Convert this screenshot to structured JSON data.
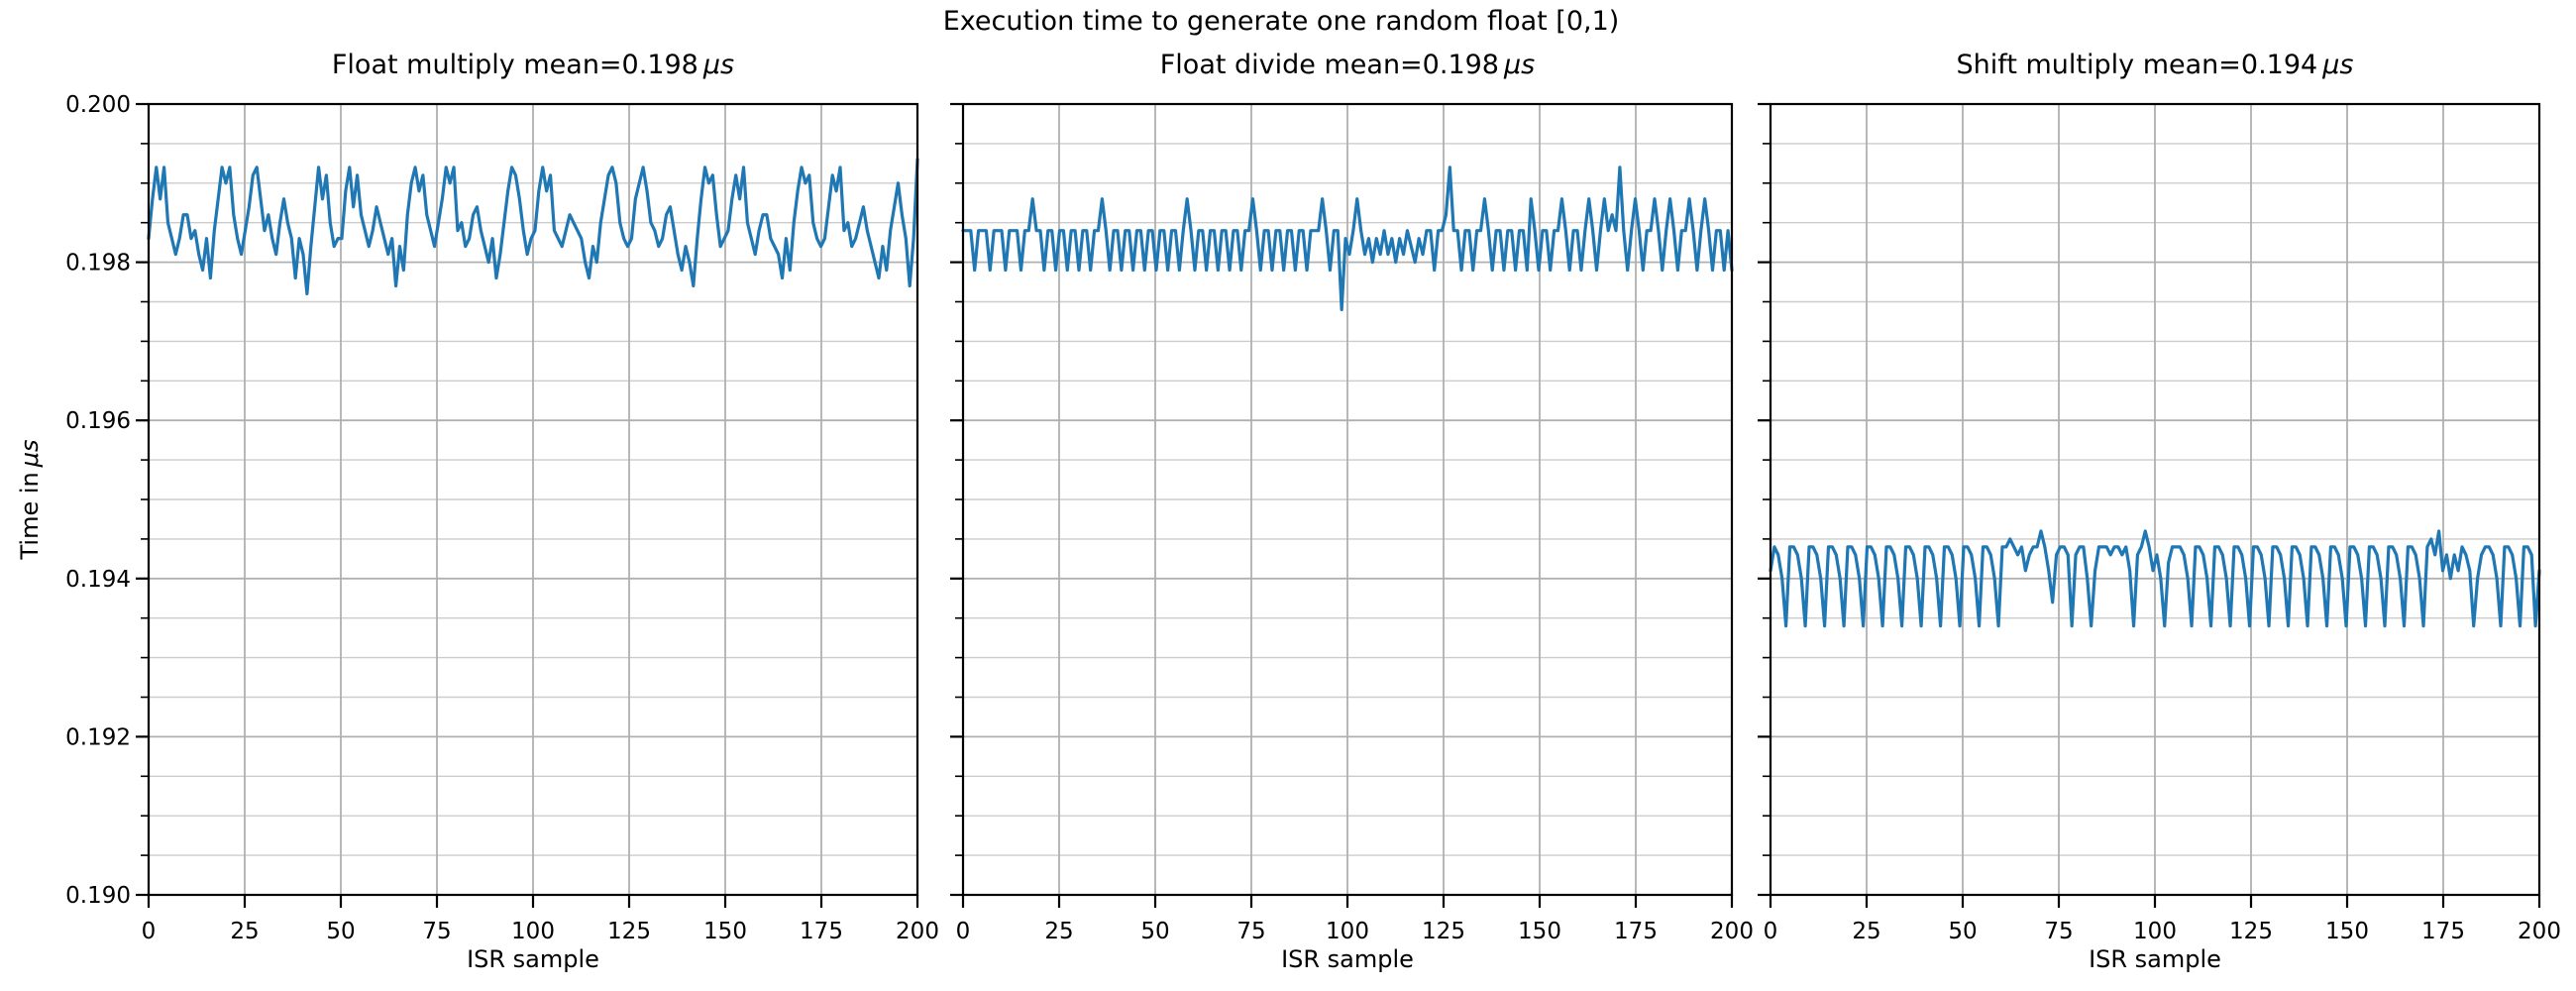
{
  "figure": {
    "suptitle": "Execution time to generate one random float [0,1)",
    "background": "#ffffff"
  },
  "shared": {
    "xlabel": "ISR sample",
    "ylabel_text": "Time in",
    "ylabel_unit": "μs",
    "line_color": "#1f77b4",
    "grid_major_color": "#b0b0b0",
    "grid_minor_color": "#cccccc",
    "axis_color": "#000000",
    "text_color": "#000000"
  },
  "chart_data": [
    {
      "type": "line",
      "title_text": "Float multiply mean=0.198",
      "title_unit": "μs",
      "mean_us": 0.198,
      "xlabel": "ISR sample",
      "ylabel": "Time in μs",
      "xlim": [
        0,
        200
      ],
      "ylim": [
        0.19,
        0.2
      ],
      "x_ticks": [
        0,
        25,
        50,
        75,
        100,
        125,
        150,
        175,
        200
      ],
      "y_ticks": [
        0.19,
        0.192,
        0.194,
        0.196,
        0.198,
        0.2
      ],
      "y_tick_labels": [
        "0.190",
        "0.192",
        "0.194",
        "0.196",
        "0.198",
        "0.200"
      ],
      "y_minor_step": 0.0005,
      "grid": "both",
      "legend": "none",
      "values": [
        0.1983,
        0.1988,
        0.1992,
        0.1988,
        0.1992,
        0.1985,
        0.1983,
        0.1981,
        0.1983,
        0.1986,
        0.1986,
        0.1983,
        0.1984,
        0.1981,
        0.1979,
        0.1983,
        0.1978,
        0.1984,
        0.1988,
        0.1992,
        0.199,
        0.1992,
        0.1986,
        0.1983,
        0.1981,
        0.1984,
        0.1987,
        0.1991,
        0.1992,
        0.1988,
        0.1984,
        0.1986,
        0.1983,
        0.1981,
        0.1985,
        0.1988,
        0.1985,
        0.1983,
        0.1978,
        0.1983,
        0.1981,
        0.1976,
        0.1982,
        0.1987,
        0.1992,
        0.1988,
        0.1991,
        0.1985,
        0.1982,
        0.1983,
        0.1983,
        0.1989,
        0.1992,
        0.1987,
        0.1991,
        0.1986,
        0.1984,
        0.1982,
        0.1984,
        0.1987,
        0.1985,
        0.1983,
        0.1981,
        0.1983,
        0.1977,
        0.1982,
        0.1979,
        0.1986,
        0.199,
        0.1992,
        0.1989,
        0.1991,
        0.1986,
        0.1984,
        0.1982,
        0.1985,
        0.1988,
        0.1992,
        0.199,
        0.1992,
        0.1984,
        0.1985,
        0.1982,
        0.1983,
        0.1986,
        0.1987,
        0.1984,
        0.1982,
        0.198,
        0.1983,
        0.1978,
        0.1981,
        0.1985,
        0.1989,
        0.1992,
        0.1991,
        0.1988,
        0.1984,
        0.1981,
        0.1983,
        0.1984,
        0.1989,
        0.1992,
        0.1989,
        0.1991,
        0.1984,
        0.1983,
        0.1982,
        0.1984,
        0.1986,
        0.1985,
        0.1984,
        0.1983,
        0.198,
        0.1978,
        0.1982,
        0.198,
        0.1985,
        0.1988,
        0.1991,
        0.1992,
        0.199,
        0.1985,
        0.1983,
        0.1982,
        0.1983,
        0.1988,
        0.199,
        0.1992,
        0.1989,
        0.1985,
        0.1984,
        0.1982,
        0.1983,
        0.1986,
        0.1987,
        0.1984,
        0.1981,
        0.1979,
        0.1982,
        0.198,
        0.1977,
        0.1983,
        0.1988,
        0.1992,
        0.199,
        0.1991,
        0.1986,
        0.1982,
        0.1983,
        0.1984,
        0.1988,
        0.1991,
        0.1988,
        0.1992,
        0.1985,
        0.1983,
        0.1981,
        0.1984,
        0.1986,
        0.1986,
        0.1983,
        0.1982,
        0.1981,
        0.1978,
        0.1983,
        0.1979,
        0.1985,
        0.1989,
        0.1992,
        0.199,
        0.1991,
        0.1985,
        0.1983,
        0.1982,
        0.1983,
        0.1987,
        0.1991,
        0.1989,
        0.1992,
        0.1984,
        0.1985,
        0.1982,
        0.1983,
        0.1985,
        0.1987,
        0.1984,
        0.1982,
        0.198,
        0.1978,
        0.1982,
        0.1979,
        0.1984,
        0.1987,
        0.199,
        0.1986,
        0.1983,
        0.1977,
        0.1983,
        0.1993
      ]
    },
    {
      "type": "line",
      "title_text": "Float divide mean=0.198",
      "title_unit": "μs",
      "mean_us": 0.198,
      "xlabel": "ISR sample",
      "ylabel": "Time in μs",
      "xlim": [
        0,
        200
      ],
      "ylim": [
        0.19,
        0.2
      ],
      "x_ticks": [
        0,
        25,
        50,
        75,
        100,
        125,
        150,
        175,
        200
      ],
      "y_ticks": [
        0.19,
        0.192,
        0.194,
        0.196,
        0.198,
        0.2
      ],
      "y_tick_labels": [
        "0.190",
        "0.192",
        "0.194",
        "0.196",
        "0.198",
        "0.200"
      ],
      "y_minor_step": 0.0005,
      "grid": "both",
      "legend": "none",
      "values": [
        0.1984,
        0.1984,
        0.1984,
        0.1979,
        0.1984,
        0.1984,
        0.1984,
        0.1979,
        0.1984,
        0.1984,
        0.1984,
        0.1979,
        0.1984,
        0.1984,
        0.1984,
        0.1979,
        0.1984,
        0.1984,
        0.1988,
        0.1984,
        0.1984,
        0.1979,
        0.1984,
        0.1984,
        0.1979,
        0.1984,
        0.1984,
        0.1979,
        0.1984,
        0.1984,
        0.1979,
        0.1984,
        0.1984,
        0.1979,
        0.1984,
        0.1984,
        0.1988,
        0.1984,
        0.1979,
        0.1984,
        0.1984,
        0.1979,
        0.1984,
        0.1984,
        0.1979,
        0.1984,
        0.1984,
        0.1979,
        0.1984,
        0.1984,
        0.1979,
        0.1984,
        0.1984,
        0.1979,
        0.1984,
        0.1984,
        0.1979,
        0.1984,
        0.1988,
        0.1984,
        0.1979,
        0.1984,
        0.1984,
        0.1979,
        0.1984,
        0.1984,
        0.1979,
        0.1984,
        0.1984,
        0.1979,
        0.1984,
        0.1984,
        0.1979,
        0.1984,
        0.1984,
        0.1988,
        0.1984,
        0.1979,
        0.1984,
        0.1984,
        0.1979,
        0.1984,
        0.1984,
        0.1979,
        0.1984,
        0.1984,
        0.1979,
        0.1984,
        0.1984,
        0.1979,
        0.1984,
        0.1984,
        0.1984,
        0.1988,
        0.1984,
        0.1979,
        0.1984,
        0.1984,
        0.1974,
        0.1983,
        0.1981,
        0.1984,
        0.1988,
        0.1984,
        0.1981,
        0.1983,
        0.198,
        0.1983,
        0.1981,
        0.1984,
        0.1981,
        0.1983,
        0.198,
        0.1983,
        0.1981,
        0.1984,
        0.1982,
        0.198,
        0.1983,
        0.1981,
        0.1984,
        0.1984,
        0.1979,
        0.1984,
        0.1984,
        0.1986,
        0.1992,
        0.1984,
        0.1984,
        0.1979,
        0.1984,
        0.1984,
        0.1979,
        0.1984,
        0.1984,
        0.1988,
        0.1984,
        0.1979,
        0.1984,
        0.1984,
        0.1979,
        0.1984,
        0.1984,
        0.1979,
        0.1984,
        0.1984,
        0.1979,
        0.1988,
        0.1984,
        0.1979,
        0.1984,
        0.1984,
        0.1979,
        0.1984,
        0.1984,
        0.1988,
        0.1984,
        0.1979,
        0.1984,
        0.1984,
        0.1979,
        0.1984,
        0.1988,
        0.1984,
        0.1979,
        0.1984,
        0.1988,
        0.1984,
        0.1986,
        0.1984,
        0.1992,
        0.1984,
        0.1979,
        0.1984,
        0.1988,
        0.1984,
        0.1979,
        0.1984,
        0.1984,
        0.1988,
        0.1984,
        0.1979,
        0.1984,
        0.1988,
        0.1984,
        0.1979,
        0.1984,
        0.1984,
        0.1988,
        0.1984,
        0.1979,
        0.1984,
        0.1988,
        0.1984,
        0.1979,
        0.1984,
        0.1984,
        0.1979,
        0.1984,
        0.1979
      ]
    },
    {
      "type": "line",
      "title_text": "Shift multiply mean=0.194",
      "title_unit": "μs",
      "mean_us": 0.194,
      "xlabel": "ISR sample",
      "ylabel": "Time in μs",
      "xlim": [
        0,
        200
      ],
      "ylim": [
        0.19,
        0.2
      ],
      "x_ticks": [
        0,
        25,
        50,
        75,
        100,
        125,
        150,
        175,
        200
      ],
      "y_ticks": [
        0.19,
        0.192,
        0.194,
        0.196,
        0.198,
        0.2
      ],
      "y_tick_labels": [
        "0.190",
        "0.192",
        "0.194",
        "0.196",
        "0.198",
        "0.200"
      ],
      "y_minor_step": 0.0005,
      "grid": "both",
      "legend": "none",
      "values": [
        0.1941,
        0.1944,
        0.1943,
        0.194,
        0.1934,
        0.1944,
        0.1944,
        0.1943,
        0.194,
        0.1934,
        0.1944,
        0.1944,
        0.1943,
        0.194,
        0.1934,
        0.1944,
        0.1944,
        0.1943,
        0.194,
        0.1934,
        0.1944,
        0.1944,
        0.1943,
        0.194,
        0.1934,
        0.1944,
        0.1944,
        0.1943,
        0.194,
        0.1934,
        0.1944,
        0.1944,
        0.1943,
        0.194,
        0.1934,
        0.1944,
        0.1944,
        0.1943,
        0.194,
        0.1934,
        0.1944,
        0.1944,
        0.1943,
        0.194,
        0.1934,
        0.1944,
        0.1944,
        0.1943,
        0.194,
        0.1934,
        0.1944,
        0.1944,
        0.1943,
        0.194,
        0.1934,
        0.1944,
        0.1944,
        0.1943,
        0.194,
        0.1934,
        0.1944,
        0.1944,
        0.1945,
        0.1944,
        0.1943,
        0.1944,
        0.1941,
        0.1943,
        0.1944,
        0.1944,
        0.1946,
        0.1944,
        0.1941,
        0.1937,
        0.1943,
        0.1944,
        0.1944,
        0.1943,
        0.1934,
        0.1943,
        0.1944,
        0.1944,
        0.194,
        0.1934,
        0.1941,
        0.1944,
        0.1944,
        0.1944,
        0.1943,
        0.1944,
        0.1944,
        0.1943,
        0.1944,
        0.1941,
        0.1934,
        0.1943,
        0.1944,
        0.1946,
        0.1944,
        0.1941,
        0.1943,
        0.194,
        0.1934,
        0.1942,
        0.1944,
        0.1944,
        0.1944,
        0.1943,
        0.194,
        0.1934,
        0.1944,
        0.1944,
        0.1943,
        0.194,
        0.1934,
        0.1944,
        0.1944,
        0.1943,
        0.194,
        0.1934,
        0.1944,
        0.1944,
        0.1943,
        0.194,
        0.1934,
        0.1944,
        0.1944,
        0.1943,
        0.194,
        0.1934,
        0.1944,
        0.1944,
        0.1943,
        0.194,
        0.1934,
        0.1944,
        0.1944,
        0.1943,
        0.194,
        0.1934,
        0.1944,
        0.1944,
        0.1943,
        0.194,
        0.1934,
        0.1944,
        0.1944,
        0.1943,
        0.194,
        0.1934,
        0.1944,
        0.1944,
        0.1943,
        0.194,
        0.1934,
        0.1944,
        0.1944,
        0.1943,
        0.194,
        0.1934,
        0.1944,
        0.1944,
        0.1943,
        0.194,
        0.1934,
        0.1944,
        0.1944,
        0.1943,
        0.194,
        0.1934,
        0.1944,
        0.1945,
        0.1943,
        0.1946,
        0.1941,
        0.1943,
        0.194,
        0.1943,
        0.1941,
        0.1944,
        0.1943,
        0.1941,
        0.1934,
        0.194,
        0.1943,
        0.1944,
        0.1944,
        0.1943,
        0.194,
        0.1934,
        0.1944,
        0.1944,
        0.1943,
        0.194,
        0.1934,
        0.1944,
        0.1944,
        0.1943,
        0.1934,
        0.1941
      ]
    }
  ]
}
